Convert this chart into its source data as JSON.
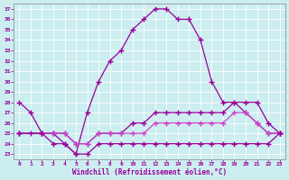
{
  "xlabel": "Windchill (Refroidissement éolien,°C)",
  "bg_color": "#cceef0",
  "line_color1": "#990099",
  "line_color2": "#cc44cc",
  "xlim": [
    -0.5,
    23.5
  ],
  "ylim": [
    22.5,
    37.5
  ],
  "xticks": [
    0,
    1,
    2,
    3,
    4,
    5,
    6,
    7,
    8,
    9,
    10,
    11,
    12,
    13,
    14,
    15,
    16,
    17,
    18,
    19,
    20,
    21,
    22,
    23
  ],
  "yticks": [
    23,
    24,
    25,
    26,
    27,
    28,
    29,
    30,
    31,
    32,
    33,
    34,
    35,
    36,
    37
  ],
  "line1_x": [
    0,
    1,
    2,
    3,
    4,
    5,
    6,
    7,
    8,
    9,
    10,
    11,
    12,
    13,
    14,
    15,
    16,
    17,
    18,
    19,
    20,
    21,
    22,
    23
  ],
  "line1_y": [
    28,
    27,
    25,
    25,
    24,
    23,
    27,
    30,
    32,
    33,
    35,
    36,
    37,
    37,
    36,
    36,
    34,
    30,
    28,
    28,
    27,
    26,
    25,
    25
  ],
  "line2_x": [
    0,
    2,
    3,
    4,
    5,
    6,
    7,
    8,
    9,
    10,
    11,
    12,
    13,
    14,
    15,
    16,
    17,
    18,
    19,
    20,
    21,
    22,
    23
  ],
  "line2_y": [
    25,
    25,
    25,
    25,
    24,
    24,
    25,
    25,
    25,
    26,
    26,
    27,
    27,
    27,
    27,
    27,
    27,
    27,
    28,
    28,
    28,
    26,
    25
  ],
  "line3_x": [
    0,
    2,
    3,
    4,
    5,
    6,
    7,
    8,
    9,
    10,
    11,
    12,
    13,
    14,
    15,
    16,
    17,
    18,
    19,
    20,
    21,
    22,
    23
  ],
  "line3_y": [
    25,
    25,
    25,
    25,
    24,
    24,
    25,
    25,
    25,
    25,
    25,
    26,
    26,
    26,
    26,
    26,
    26,
    26,
    27,
    27,
    26,
    25,
    25
  ],
  "line4_x": [
    0,
    1,
    2,
    3,
    4,
    5,
    6,
    7,
    8,
    9,
    10,
    11,
    12,
    13,
    14,
    15,
    16,
    17,
    18,
    19,
    20,
    21,
    22,
    23
  ],
  "line4_y": [
    25,
    25,
    25,
    24,
    24,
    23,
    23,
    24,
    24,
    24,
    24,
    24,
    24,
    24,
    24,
    24,
    24,
    24,
    24,
    24,
    24,
    24,
    24,
    25
  ]
}
